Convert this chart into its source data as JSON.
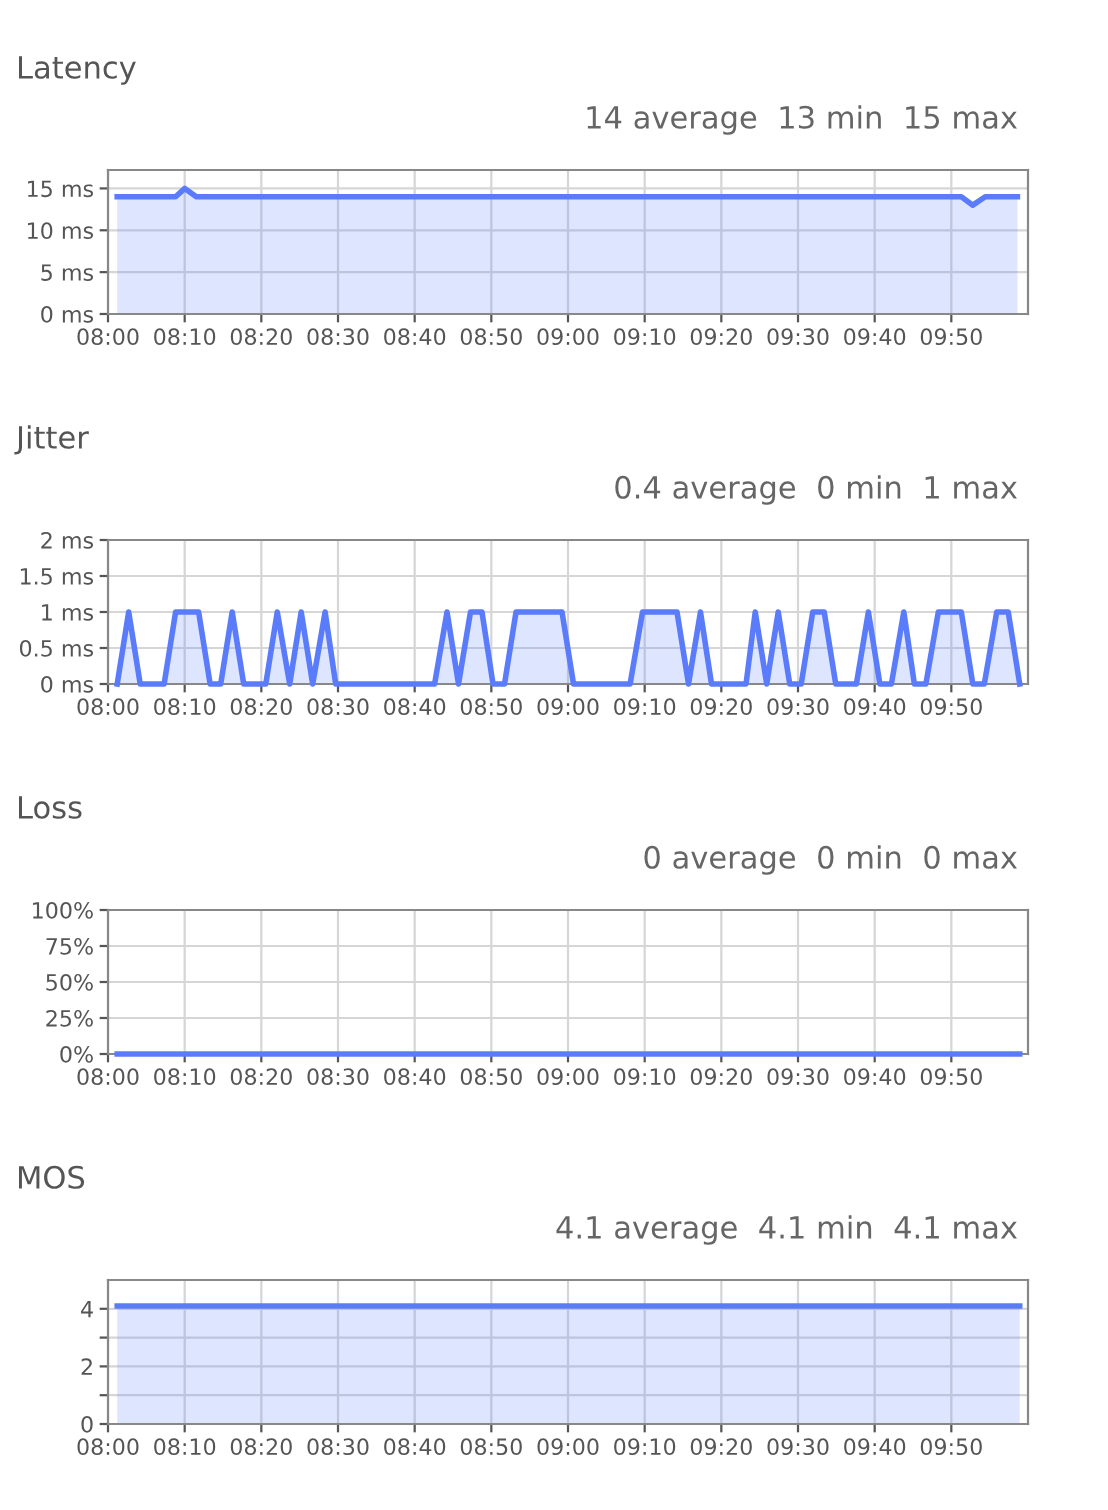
{
  "chart_data": [
    {
      "type": "area",
      "title": "Latency",
      "subtitle": "14 average  13 min  15 max",
      "grid": true,
      "xlim": [
        8.0,
        10.0
      ],
      "xticks": [
        {
          "value": 8.0,
          "label": "08:00"
        },
        {
          "value": 8.1667,
          "label": "08:10"
        },
        {
          "value": 8.3333,
          "label": "08:20"
        },
        {
          "value": 8.5,
          "label": "08:30"
        },
        {
          "value": 8.6667,
          "label": "08:40"
        },
        {
          "value": 8.8333,
          "label": "08:50"
        },
        {
          "value": 9.0,
          "label": "09:00"
        },
        {
          "value": 9.1667,
          "label": "09:10"
        },
        {
          "value": 9.3333,
          "label": "09:20"
        },
        {
          "value": 9.5,
          "label": "09:30"
        },
        {
          "value": 9.6667,
          "label": "09:40"
        },
        {
          "value": 9.8333,
          "label": "09:50"
        }
      ],
      "ylim": [
        0,
        17.2
      ],
      "yticks": [
        {
          "value": 0,
          "label": "0 ms"
        },
        {
          "value": 5,
          "label": "5 ms"
        },
        {
          "value": 10,
          "label": "10 ms"
        },
        {
          "value": 15,
          "label": "15 ms"
        }
      ],
      "series": [
        {
          "color": "#5b7cfa",
          "x": [
            8.02,
            8.147,
            8.167,
            8.192,
            9.855,
            9.88,
            9.907,
            9.977
          ],
          "values": [
            14,
            14,
            15,
            14,
            14,
            13,
            14,
            14
          ]
        }
      ]
    },
    {
      "type": "area",
      "title": "Jitter",
      "subtitle": "0.4 average  0 min  1 max",
      "grid": true,
      "xlim": [
        8.0,
        10.0
      ],
      "xticks": [
        {
          "value": 8.0,
          "label": "08:00"
        },
        {
          "value": 8.1667,
          "label": "08:10"
        },
        {
          "value": 8.3333,
          "label": "08:20"
        },
        {
          "value": 8.5,
          "label": "08:30"
        },
        {
          "value": 8.6667,
          "label": "08:40"
        },
        {
          "value": 8.8333,
          "label": "08:50"
        },
        {
          "value": 9.0,
          "label": "09:00"
        },
        {
          "value": 9.1667,
          "label": "09:10"
        },
        {
          "value": 9.3333,
          "label": "09:20"
        },
        {
          "value": 9.5,
          "label": "09:30"
        },
        {
          "value": 9.6667,
          "label": "09:40"
        },
        {
          "value": 9.8333,
          "label": "09:50"
        }
      ],
      "ylim": [
        0,
        2
      ],
      "yticks": [
        {
          "value": 0,
          "label": "0 ms"
        },
        {
          "value": 0.5,
          "label": "0.5 ms"
        },
        {
          "value": 1,
          "label": "1 ms"
        },
        {
          "value": 1.5,
          "label": "1.5 ms"
        },
        {
          "value": 2,
          "label": "2 ms"
        }
      ],
      "series": [
        {
          "color": "#5b7cfa",
          "x": [
            8.02,
            8.045,
            8.07,
            8.122,
            8.147,
            8.197,
            8.222,
            8.245,
            8.27,
            8.295,
            8.343,
            8.368,
            8.395,
            8.42,
            8.445,
            8.472,
            8.495,
            8.71,
            8.737,
            8.762,
            8.788,
            8.813,
            8.837,
            8.862,
            8.887,
            8.987,
            9.012,
            9.135,
            9.162,
            9.237,
            9.262,
            9.288,
            9.312,
            9.387,
            9.407,
            9.432,
            9.457,
            9.482,
            9.507,
            9.532,
            9.557,
            9.582,
            9.627,
            9.653,
            9.678,
            9.703,
            9.73,
            9.753,
            9.778,
            9.805,
            9.855,
            9.88,
            9.905,
            9.932,
            9.957,
            9.982
          ],
          "values": [
            0,
            1,
            0,
            0,
            1,
            1,
            0,
            0,
            1,
            0,
            0,
            1,
            0,
            1,
            0,
            1,
            0,
            0,
            1,
            0,
            1,
            1,
            0,
            0,
            1,
            1,
            0,
            0,
            1,
            1,
            0,
            1,
            0,
            0,
            1,
            0,
            1,
            0,
            0,
            1,
            1,
            0,
            0,
            1,
            0,
            0,
            1,
            0,
            0,
            1,
            1,
            0,
            0,
            1,
            1,
            0
          ]
        }
      ]
    },
    {
      "type": "area",
      "title": "Loss",
      "subtitle": "0 average  0 min  0 max",
      "grid": true,
      "xlim": [
        8.0,
        10.0
      ],
      "xticks": [
        {
          "value": 8.0,
          "label": "08:00"
        },
        {
          "value": 8.1667,
          "label": "08:10"
        },
        {
          "value": 8.3333,
          "label": "08:20"
        },
        {
          "value": 8.5,
          "label": "08:30"
        },
        {
          "value": 8.6667,
          "label": "08:40"
        },
        {
          "value": 8.8333,
          "label": "08:50"
        },
        {
          "value": 9.0,
          "label": "09:00"
        },
        {
          "value": 9.1667,
          "label": "09:10"
        },
        {
          "value": 9.3333,
          "label": "09:20"
        },
        {
          "value": 9.5,
          "label": "09:30"
        },
        {
          "value": 9.6667,
          "label": "09:40"
        },
        {
          "value": 9.8333,
          "label": "09:50"
        }
      ],
      "ylim": [
        0,
        100
      ],
      "yticks": [
        {
          "value": 0,
          "label": "0%"
        },
        {
          "value": 25,
          "label": "25%"
        },
        {
          "value": 50,
          "label": "50%"
        },
        {
          "value": 75,
          "label": "75%"
        },
        {
          "value": 100,
          "label": "100%"
        }
      ],
      "series": [
        {
          "type": "line",
          "color": "#5b7cfa",
          "x": [
            8.02,
            9.982
          ],
          "values": [
            0,
            0
          ]
        }
      ]
    },
    {
      "type": "area",
      "title": "MOS",
      "subtitle": "4.1 average  4.1 min  4.1 max",
      "grid": true,
      "xlim": [
        8.0,
        10.0
      ],
      "xticks": [
        {
          "value": 8.0,
          "label": "08:00"
        },
        {
          "value": 8.1667,
          "label": "08:10"
        },
        {
          "value": 8.3333,
          "label": "08:20"
        },
        {
          "value": 8.5,
          "label": "08:30"
        },
        {
          "value": 8.6667,
          "label": "08:40"
        },
        {
          "value": 8.8333,
          "label": "08:50"
        },
        {
          "value": 9.0,
          "label": "09:00"
        },
        {
          "value": 9.1667,
          "label": "09:10"
        },
        {
          "value": 9.3333,
          "label": "09:20"
        },
        {
          "value": 9.5,
          "label": "09:30"
        },
        {
          "value": 9.6667,
          "label": "09:40"
        },
        {
          "value": 9.8333,
          "label": "09:50"
        }
      ],
      "ylim": [
        0,
        5
      ],
      "yticks": [
        0,
        {
          "value": 1,
          "label": null
        },
        2,
        {
          "value": 3,
          "label": null
        },
        4
      ],
      "series": [
        {
          "color": "#5b7cfa",
          "x": [
            8.02,
            9.982
          ],
          "values": [
            4.1,
            4.1
          ]
        }
      ]
    }
  ]
}
